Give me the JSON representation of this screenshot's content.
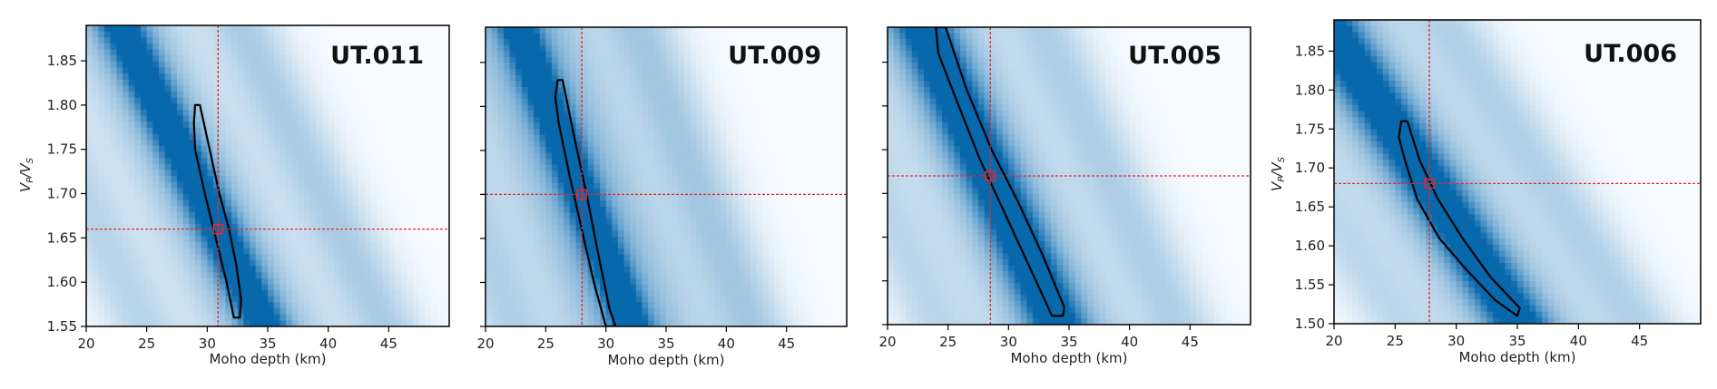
{
  "chart_data": [
    {
      "type": "heatmap",
      "title": "UT.011",
      "xlabel": "Moho depth (km)",
      "ylabel": "V_P/V_S",
      "ylabel_parts": {
        "v1": "V",
        "s1": "P",
        "sep": "/",
        "v2": "V",
        "s2": "S"
      },
      "xlim": [
        20,
        50
      ],
      "ylim": [
        1.55,
        1.89
      ],
      "xticks": [
        20,
        25,
        30,
        35,
        40,
        45
      ],
      "yticks": [
        1.55,
        1.6,
        1.65,
        1.7,
        1.75,
        1.8,
        1.85
      ],
      "best_fit": {
        "x": 30.9,
        "y": 1.66
      },
      "contour": [
        [
          29.0,
          1.8
        ],
        [
          29.4,
          1.8
        ],
        [
          30.2,
          1.75
        ],
        [
          31.0,
          1.7
        ],
        [
          31.8,
          1.66
        ],
        [
          32.4,
          1.62
        ],
        [
          32.8,
          1.58
        ],
        [
          32.7,
          1.56
        ],
        [
          32.2,
          1.56
        ],
        [
          31.6,
          1.6
        ],
        [
          30.7,
          1.65
        ],
        [
          29.8,
          1.7
        ],
        [
          29.0,
          1.75
        ],
        [
          28.9,
          1.78
        ]
      ],
      "band": {
        "ridge_x": 30.9,
        "ridge_y": 1.66,
        "slope": -0.0285,
        "sigma": 1.2,
        "side_sigma": 3.5,
        "side_strength": 0.45,
        "repeat_dx": 10.0,
        "repeat_strength": 0.28
      }
    },
    {
      "type": "heatmap",
      "title": "UT.009",
      "xlabel": "Moho depth (km)",
      "ylabel": "",
      "xlim": [
        20,
        50
      ],
      "ylim": [
        1.55,
        1.89
      ],
      "xticks": [
        20,
        25,
        30,
        35,
        40,
        45
      ],
      "yticks": [
        1.55,
        1.6,
        1.65,
        1.7,
        1.75,
        1.8,
        1.85
      ],
      "best_fit": {
        "x": 28.0,
        "y": 1.7
      },
      "contour": [
        [
          26.0,
          1.83
        ],
        [
          26.4,
          1.83
        ],
        [
          27.3,
          1.77
        ],
        [
          28.4,
          1.7
        ],
        [
          29.4,
          1.63
        ],
        [
          30.3,
          1.57
        ],
        [
          30.8,
          1.55
        ],
        [
          30.0,
          1.55
        ],
        [
          29.0,
          1.6
        ],
        [
          28.0,
          1.66
        ],
        [
          27.0,
          1.72
        ],
        [
          26.1,
          1.78
        ],
        [
          25.8,
          1.81
        ]
      ],
      "band": {
        "ridge_x": 28.0,
        "ridge_y": 1.7,
        "slope": -0.036,
        "sigma": 1.1,
        "side_sigma": 4.0,
        "side_strength": 0.5,
        "repeat_dx": 10.0,
        "repeat_strength": 0.3
      }
    },
    {
      "type": "heatmap",
      "title": "UT.005",
      "xlabel": "Moho depth (km)",
      "ylabel": "",
      "xlim": [
        20,
        50
      ],
      "ylim": [
        1.55,
        1.89
      ],
      "xticks": [
        20,
        25,
        30,
        35,
        40,
        45
      ],
      "yticks": [
        1.55,
        1.6,
        1.65,
        1.7,
        1.75,
        1.8,
        1.85
      ],
      "best_fit": {
        "x": 28.5,
        "y": 1.72
      },
      "contour": [
        [
          24.0,
          1.89
        ],
        [
          24.8,
          1.89
        ],
        [
          26.5,
          1.82
        ],
        [
          28.6,
          1.75
        ],
        [
          30.8,
          1.69
        ],
        [
          32.8,
          1.63
        ],
        [
          34.6,
          1.57
        ],
        [
          34.5,
          1.56
        ],
        [
          33.6,
          1.56
        ],
        [
          31.6,
          1.62
        ],
        [
          29.6,
          1.68
        ],
        [
          27.6,
          1.74
        ],
        [
          25.6,
          1.81
        ],
        [
          24.2,
          1.86
        ]
      ],
      "band": {
        "ridge_x": 28.5,
        "ridge_y": 1.72,
        "slope": -0.0305,
        "sigma": 1.5,
        "side_sigma": 4.0,
        "side_strength": 0.45,
        "repeat_dx": 10.0,
        "repeat_strength": 0.25
      }
    },
    {
      "type": "heatmap",
      "title": "UT.006",
      "xlabel": "Moho depth (km)",
      "ylabel": "V_P/V_S",
      "ylabel_parts": {
        "v1": "V",
        "s1": "P",
        "sep": "/",
        "v2": "V",
        "s2": "S"
      },
      "xlim": [
        20,
        50
      ],
      "ylim": [
        1.5,
        1.89
      ],
      "xticks": [
        20,
        25,
        30,
        35,
        40,
        45
      ],
      "yticks": [
        1.5,
        1.55,
        1.6,
        1.65,
        1.7,
        1.75,
        1.8,
        1.85
      ],
      "best_fit": {
        "x": 27.8,
        "y": 1.68
      },
      "contour": [
        [
          25.5,
          1.76
        ],
        [
          26.0,
          1.76
        ],
        [
          27.0,
          1.71
        ],
        [
          28.5,
          1.66
        ],
        [
          30.5,
          1.61
        ],
        [
          32.8,
          1.56
        ],
        [
          35.2,
          1.52
        ],
        [
          35.0,
          1.51
        ],
        [
          33.2,
          1.53
        ],
        [
          30.8,
          1.57
        ],
        [
          28.6,
          1.61
        ],
        [
          26.8,
          1.66
        ],
        [
          25.8,
          1.71
        ],
        [
          25.3,
          1.74
        ]
      ],
      "band": {
        "ridge_x": 27.8,
        "ridge_y": 1.68,
        "slope": -0.0245,
        "sigma": 1.6,
        "side_sigma": 4.5,
        "side_strength": 0.4,
        "repeat_dx": 10.0,
        "repeat_strength": 0.22
      }
    }
  ]
}
